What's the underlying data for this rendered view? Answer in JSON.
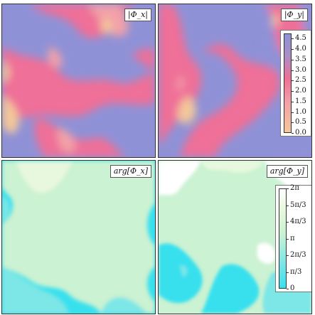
{
  "panels": [
    {
      "label": "|Φ_x|",
      "type": "magnitude"
    },
    {
      "label": "|Φ_y|",
      "type": "magnitude"
    },
    {
      "label": "arg[Φ_x]",
      "type": "phase"
    },
    {
      "label": "arg[Φ_y]",
      "type": "phase"
    }
  ],
  "chart_data": [
    {
      "type": "heatmap",
      "title": "|Φ_x|",
      "colorbar_range": [
        0,
        4.75
      ],
      "colormap": [
        "#f4c79a",
        "#f3a1a8",
        "#ef6f98",
        "#a98fc4",
        "#8f91d6"
      ]
    },
    {
      "type": "heatmap",
      "title": "|Φ_y|",
      "colorbar_range": [
        0,
        4.75
      ],
      "colorbar_ticks": [
        "0.0",
        "0.5",
        "1.0",
        "1.5",
        "2.0",
        "2.5",
        "3.0",
        "3.5",
        "4.0",
        "4.5"
      ],
      "colormap": [
        "#f4c79a",
        "#f3a1a8",
        "#ef6f98",
        "#a98fc4",
        "#8f91d6"
      ]
    },
    {
      "type": "heatmap",
      "title": "arg[Φ_x]",
      "colorbar_range": [
        "0",
        "2π"
      ],
      "colormap": [
        "#38e0ee",
        "#7de6e6",
        "#cbf2d2",
        "#e8f8de"
      ]
    },
    {
      "type": "heatmap",
      "title": "arg[Φ_y]",
      "colorbar_range": [
        "0",
        "2π"
      ],
      "colorbar_ticks": [
        "0",
        "π/3",
        "2π/3",
        "π",
        "4π/3",
        "5π/3",
        "2π"
      ],
      "colormap": [
        "#38e0ee",
        "#7de6e6",
        "#cbf2d2",
        "#e8f8de",
        "#ffffff"
      ]
    }
  ]
}
